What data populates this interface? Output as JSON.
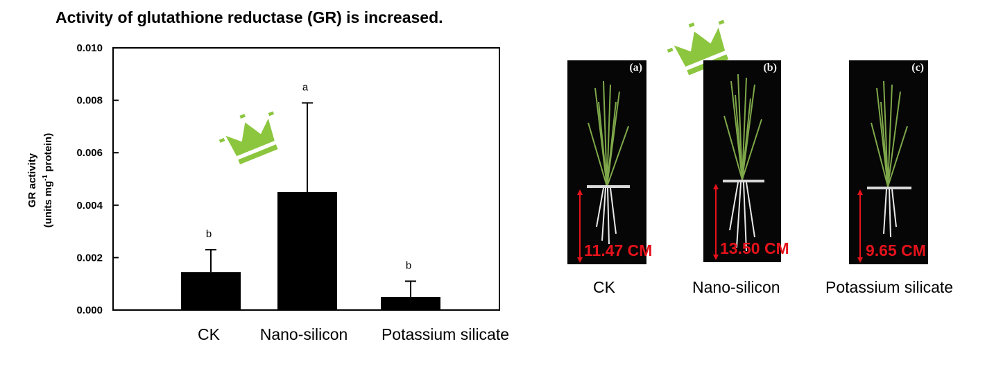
{
  "title": "Activity of glutathione reductase (GR) is increased.",
  "chart_data": {
    "type": "bar",
    "categories": [
      "CK",
      "Nano-silicon",
      "Potassium silicate"
    ],
    "values": [
      0.00145,
      0.0045,
      0.0005
    ],
    "errors": [
      0.00085,
      0.0034,
      0.0006
    ],
    "significance": [
      "b",
      "a",
      "b"
    ],
    "ylabel_line1": "GR activity",
    "ylabel_line2_pre": "(units mg",
    "ylabel_sup": "-1",
    "ylabel_line2_post": " protein)",
    "ylim": [
      0,
      0.01
    ],
    "yticks": [
      "0.000",
      "0.002",
      "0.004",
      "0.006",
      "0.008",
      "0.010"
    ],
    "bar_color": "#000000"
  },
  "photos": [
    {
      "tag": "(a)",
      "length": "11.47 CM",
      "label": "CK"
    },
    {
      "tag": "(b)",
      "length": "13.50 CM",
      "label": "Nano-silicon"
    },
    {
      "tag": "(c)",
      "length": "9.65 CM",
      "label": "Potassium silicate"
    }
  ],
  "colors": {
    "crown": "#8cc63f",
    "length_text": "#e5121b",
    "panel_bg": "#060606"
  },
  "icons": {
    "crown": "crown-icon"
  }
}
